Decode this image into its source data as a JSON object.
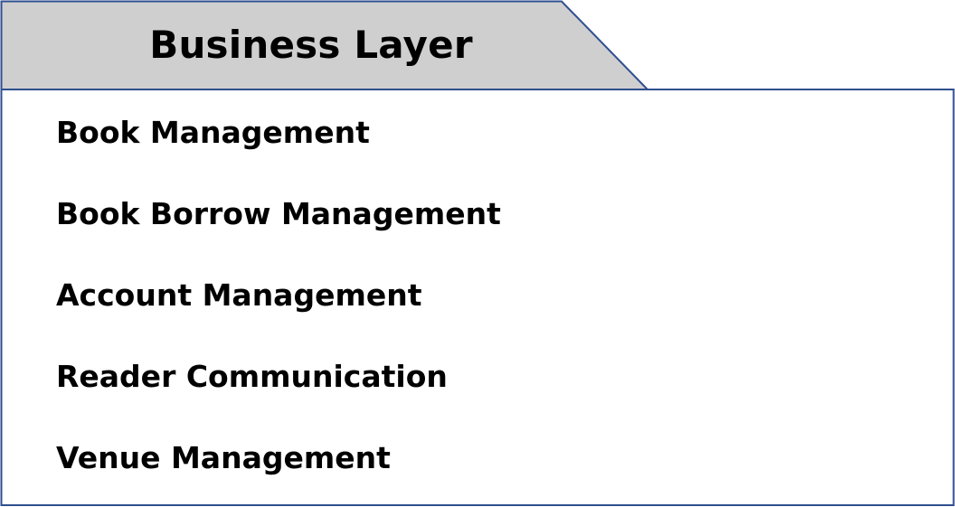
{
  "package": {
    "title": "Business Layer",
    "items": [
      "Book Management",
      "Book Borrow Management",
      "Account Management",
      "Reader Communication",
      "Venue Management"
    ]
  },
  "colors": {
    "tab_fill": "#d0cfd0",
    "border": "#2f4f8f",
    "body_fill": "#ffffff",
    "text": "#000000"
  }
}
